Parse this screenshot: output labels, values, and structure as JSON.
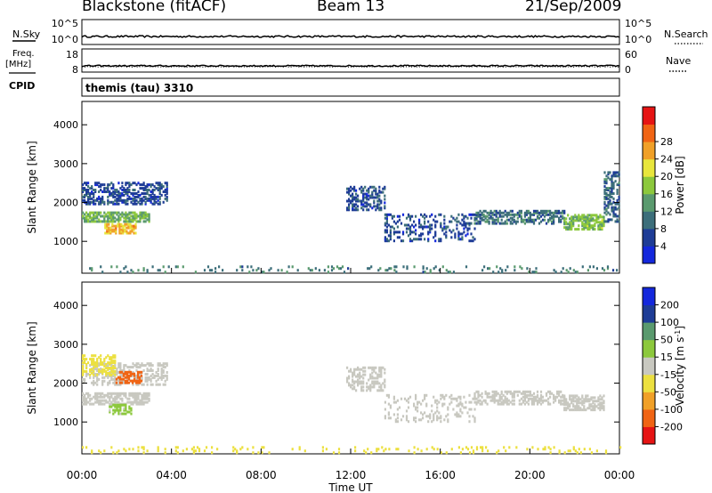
{
  "header": {
    "station": "Blackstone (fitACF)",
    "beam": "Beam 13",
    "date": "21/Sep/2009"
  },
  "side_labels": {
    "nsky": "N.Sky",
    "freq_line1": "Freq.",
    "freq_line2": "[MHz]",
    "cpid": "CPID",
    "nsearch": "N.Search",
    "nave": "Nave"
  },
  "strip_ticks": {
    "noise_left": [
      "10^5",
      "10^0"
    ],
    "noise_right": [
      "10^5",
      "10^0"
    ],
    "freq_left": [
      "18",
      "8"
    ],
    "nave_right": [
      "60",
      "0"
    ]
  },
  "cpid_text": "themis (tau) 3310",
  "colors": {
    "power_scale": [
      "#1428dc",
      "#1e3c96",
      "#3c6e7a",
      "#5a9a6e",
      "#8cc83c",
      "#e8e63c",
      "#f0a028",
      "#f06414",
      "#e61414"
    ],
    "velocity_scale": [
      "#e61414",
      "#f06414",
      "#f0a028",
      "#ece040",
      "#c8c8c0",
      "#8cc83c",
      "#5a9a6e",
      "#1e3c96",
      "#1428dc"
    ]
  },
  "chart_data": [
    {
      "type": "heatmap",
      "title": "",
      "xlabel": "",
      "ylabel": "Slant Range [km]",
      "xlim": [
        "00:00",
        "24:00"
      ],
      "ylim": [
        180,
        4600
      ],
      "x_ticks": [
        "00:00",
        "04:00",
        "08:00",
        "12:00",
        "16:00",
        "20:00",
        "00:00"
      ],
      "y_ticks": [
        "1000",
        "2000",
        "3000",
        "4000"
      ],
      "colorbar": {
        "label": "Power [dB]",
        "ticks": [
          "4",
          "8",
          "12",
          "16",
          "20",
          "24",
          "28"
        ],
        "range": [
          0,
          32
        ]
      },
      "scatter_bands": [
        {
          "t": [
            0.0,
            3.8
          ],
          "range": [
            1950,
            2500
          ],
          "value": 6,
          "density": 0.55
        },
        {
          "t": [
            0.0,
            3.0
          ],
          "range": [
            1500,
            1750
          ],
          "value": 14,
          "density": 0.7
        },
        {
          "t": [
            1.0,
            2.4
          ],
          "range": [
            1200,
            1450
          ],
          "value": 22,
          "density": 0.75
        },
        {
          "t": [
            11.8,
            13.5
          ],
          "range": [
            1800,
            2400
          ],
          "value": 6,
          "density": 0.5
        },
        {
          "t": [
            13.5,
            17.5
          ],
          "range": [
            1000,
            1700
          ],
          "value": 6,
          "density": 0.3
        },
        {
          "t": [
            17.5,
            21.5
          ],
          "range": [
            1450,
            1800
          ],
          "value": 9,
          "density": 0.55
        },
        {
          "t": [
            21.5,
            23.3
          ],
          "range": [
            1300,
            1700
          ],
          "value": 15,
          "density": 0.65
        },
        {
          "t": [
            23.3,
            24.0
          ],
          "range": [
            1500,
            2800
          ],
          "value": 8,
          "density": 0.45
        },
        {
          "t": [
            0.0,
            24.0
          ],
          "range": [
            200,
            380
          ],
          "value": 10,
          "density": 0.12
        }
      ]
    },
    {
      "type": "heatmap",
      "title": "",
      "xlabel": "Time UT",
      "ylabel": "Slant Range [km]",
      "xlim": [
        "00:00",
        "24:00"
      ],
      "ylim": [
        180,
        4600
      ],
      "x_ticks": [
        "00:00",
        "04:00",
        "08:00",
        "12:00",
        "16:00",
        "20:00",
        "00:00"
      ],
      "y_ticks": [
        "1000",
        "2000",
        "3000",
        "4000"
      ],
      "colorbar": {
        "label": "Velocity [m s^-1]",
        "ticks": [
          "200",
          "100",
          "50",
          "15",
          "-15",
          "-50",
          "-100",
          "-200"
        ],
        "range": [
          -250,
          250
        ]
      },
      "scatter_bands": [
        {
          "t": [
            0.0,
            3.8
          ],
          "range": [
            1950,
            2500
          ],
          "value": 0,
          "density": 0.45
        },
        {
          "t": [
            0.0,
            1.5
          ],
          "range": [
            2200,
            2700
          ],
          "value": -80,
          "density": 0.5
        },
        {
          "t": [
            1.5,
            2.7
          ],
          "range": [
            2000,
            2300
          ],
          "value": -180,
          "density": 0.6
        },
        {
          "t": [
            0.0,
            3.0
          ],
          "range": [
            1450,
            1750
          ],
          "value": 0,
          "density": 0.65
        },
        {
          "t": [
            1.2,
            2.2
          ],
          "range": [
            1200,
            1450
          ],
          "value": 30,
          "density": 0.6
        },
        {
          "t": [
            11.8,
            13.5
          ],
          "range": [
            1800,
            2400
          ],
          "value": 0,
          "density": 0.45
        },
        {
          "t": [
            13.5,
            17.5
          ],
          "range": [
            1000,
            1700
          ],
          "value": 0,
          "density": 0.25
        },
        {
          "t": [
            17.5,
            21.5
          ],
          "range": [
            1450,
            1800
          ],
          "value": 0,
          "density": 0.5
        },
        {
          "t": [
            21.5,
            23.3
          ],
          "range": [
            1300,
            1700
          ],
          "value": 0,
          "density": 0.6
        },
        {
          "t": [
            0.0,
            24.0
          ],
          "range": [
            200,
            380
          ],
          "value": -40,
          "density": 0.12
        }
      ]
    }
  ]
}
